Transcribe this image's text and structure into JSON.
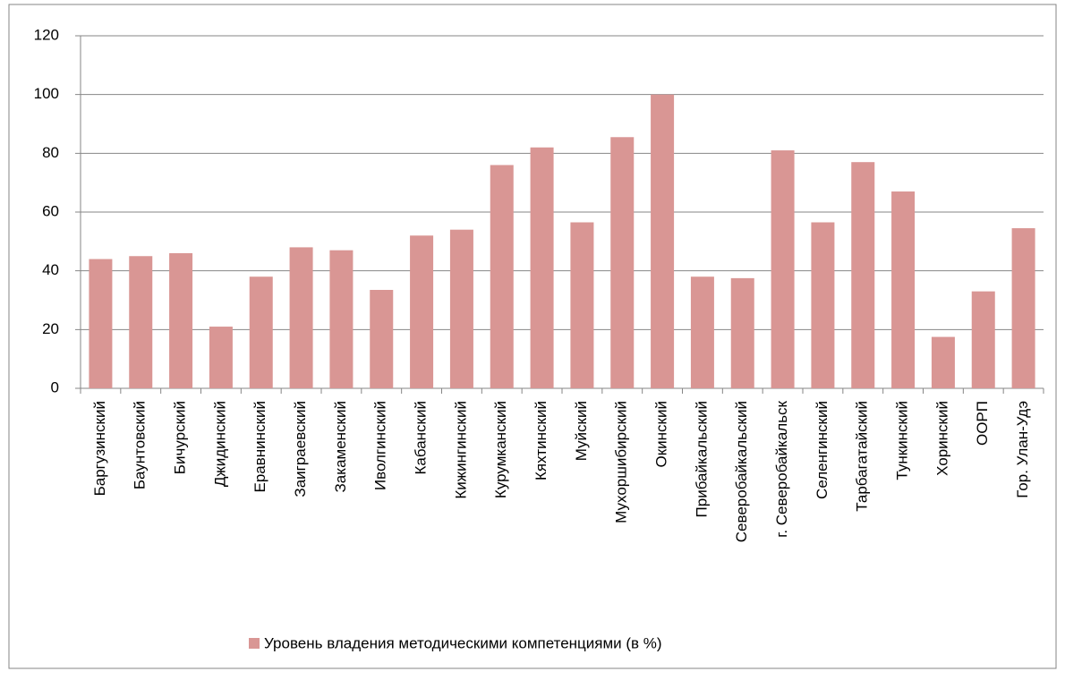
{
  "chart_data": {
    "type": "bar",
    "categories": [
      "Баргузинский",
      "Баунтовский",
      "Бичурский",
      "Джидинский",
      "Еравнинский",
      "Заиграевский",
      "Закаменский",
      "Иволгинский",
      "Кабанский",
      "Кижингинский",
      "Курумканский",
      "Кяхтинский",
      "Муйский",
      "Мухоршибирский",
      "Окинский",
      "Прибайкальский",
      "Северобайкальский",
      "г. Северобайкальск",
      "Селенгинский",
      "Тарбагатайский",
      "Тункинский",
      "Хоринский",
      "ООРП",
      "Гор. Улан-Удэ"
    ],
    "series": [
      {
        "name": "Уровень владения методическими компетенциями (в %)",
        "color": "#d99694",
        "values": [
          44,
          45,
          46,
          21,
          38,
          48,
          47,
          33.5,
          52,
          54,
          76,
          82,
          56.5,
          85.5,
          100,
          38,
          37.5,
          81,
          56.5,
          77,
          67,
          17.5,
          33,
          54.5
        ]
      }
    ],
    "ylim": [
      0,
      120
    ],
    "yticks": [
      0,
      20,
      40,
      60,
      80,
      100,
      120
    ],
    "grid": true,
    "legend": "bottom"
  }
}
